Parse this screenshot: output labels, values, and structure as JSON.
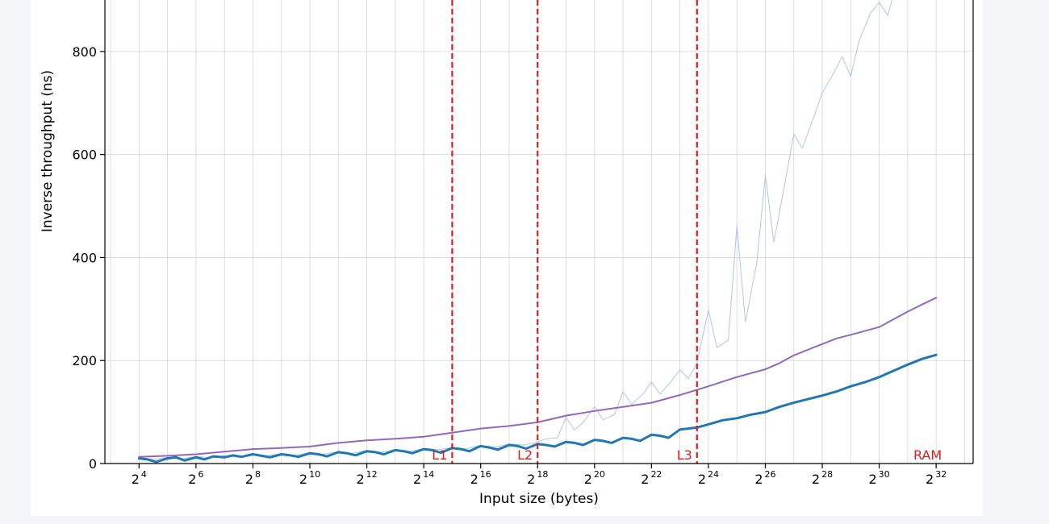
{
  "chart_data": {
    "type": "line",
    "title": "",
    "xlabel": "Input size (bytes)",
    "ylabel": "Inverse throughput (ns)",
    "xscale": "log2",
    "xlim_log2": [
      2.8,
      33.3
    ],
    "ylim": [
      0,
      900
    ],
    "grid": true,
    "x_ticks": [
      {
        "base": "2",
        "exp": "4",
        "log2": 4
      },
      {
        "base": "2",
        "exp": "6",
        "log2": 6
      },
      {
        "base": "2",
        "exp": "8",
        "log2": 8
      },
      {
        "base": "2",
        "exp": "10",
        "log2": 10
      },
      {
        "base": "2",
        "exp": "12",
        "log2": 12
      },
      {
        "base": "2",
        "exp": "14",
        "log2": 14
      },
      {
        "base": "2",
        "exp": "16",
        "log2": 16
      },
      {
        "base": "2",
        "exp": "18",
        "log2": 18
      },
      {
        "base": "2",
        "exp": "20",
        "log2": 20
      },
      {
        "base": "2",
        "exp": "22",
        "log2": 22
      },
      {
        "base": "2",
        "exp": "24",
        "log2": 24
      },
      {
        "base": "2",
        "exp": "26",
        "log2": 26
      },
      {
        "base": "2",
        "exp": "28",
        "log2": 28
      },
      {
        "base": "2",
        "exp": "30",
        "log2": 30
      },
      {
        "base": "2",
        "exp": "32",
        "log2": 32
      }
    ],
    "y_ticks": [
      {
        "label": "0",
        "value": 0
      },
      {
        "label": "200",
        "value": 200
      },
      {
        "label": "400",
        "value": 400
      },
      {
        "label": "600",
        "value": 600
      },
      {
        "label": "800",
        "value": 800
      }
    ],
    "cache_lines": [
      {
        "label": "L1",
        "log2": 15
      },
      {
        "label": "L2",
        "log2": 18
      },
      {
        "label": "L3",
        "log2": 23.6
      }
    ],
    "region_labels": [
      {
        "label": "RAM",
        "log2": 31.7
      }
    ],
    "series": [
      {
        "color": "#9467bd",
        "width": 2,
        "points": [
          [
            4,
            13
          ],
          [
            5,
            15
          ],
          [
            6,
            18
          ],
          [
            7,
            23
          ],
          [
            8,
            28
          ],
          [
            9,
            30
          ],
          [
            10,
            33
          ],
          [
            11,
            40
          ],
          [
            12,
            45
          ],
          [
            13,
            48
          ],
          [
            14,
            52
          ],
          [
            15,
            60
          ],
          [
            16,
            68
          ],
          [
            17,
            73
          ],
          [
            18,
            80
          ],
          [
            19,
            93
          ],
          [
            20,
            102
          ],
          [
            21,
            110
          ],
          [
            22,
            118
          ],
          [
            23,
            133
          ],
          [
            23.6,
            143
          ],
          [
            24,
            150
          ],
          [
            25,
            168
          ],
          [
            26,
            183
          ],
          [
            26.5,
            195
          ],
          [
            27,
            210
          ],
          [
            28,
            232
          ],
          [
            28.5,
            243
          ],
          [
            29,
            250
          ],
          [
            30,
            265
          ],
          [
            30.5,
            280
          ],
          [
            31,
            295
          ],
          [
            32,
            322
          ]
        ]
      },
      {
        "color": "#1f77b4",
        "width": 3,
        "points": [
          [
            4,
            10
          ],
          [
            4.3,
            8
          ],
          [
            4.6,
            3
          ],
          [
            5,
            10
          ],
          [
            5.3,
            12
          ],
          [
            5.6,
            6
          ],
          [
            6,
            12
          ],
          [
            6.3,
            8
          ],
          [
            6.6,
            14
          ],
          [
            7,
            12
          ],
          [
            7.3,
            16
          ],
          [
            7.6,
            13
          ],
          [
            8,
            18
          ],
          [
            8.3,
            15
          ],
          [
            8.6,
            12
          ],
          [
            9,
            18
          ],
          [
            9.3,
            16
          ],
          [
            9.6,
            13
          ],
          [
            10,
            20
          ],
          [
            10.3,
            18
          ],
          [
            10.6,
            14
          ],
          [
            11,
            22
          ],
          [
            11.3,
            20
          ],
          [
            11.6,
            16
          ],
          [
            12,
            24
          ],
          [
            12.3,
            22
          ],
          [
            12.6,
            18
          ],
          [
            13,
            26
          ],
          [
            13.3,
            24
          ],
          [
            13.6,
            20
          ],
          [
            14,
            28
          ],
          [
            14.3,
            26
          ],
          [
            14.6,
            21
          ],
          [
            15,
            30
          ],
          [
            15.3,
            28
          ],
          [
            15.6,
            24
          ],
          [
            16,
            34
          ],
          [
            16.3,
            31
          ],
          [
            16.6,
            27
          ],
          [
            17,
            36
          ],
          [
            17.3,
            34
          ],
          [
            17.6,
            29
          ],
          [
            18,
            38
          ],
          [
            18.3,
            36
          ],
          [
            18.6,
            33
          ],
          [
            19,
            42
          ],
          [
            19.3,
            40
          ],
          [
            19.6,
            36
          ],
          [
            20,
            46
          ],
          [
            20.3,
            44
          ],
          [
            20.6,
            40
          ],
          [
            21,
            50
          ],
          [
            21.3,
            48
          ],
          [
            21.6,
            44
          ],
          [
            22,
            56
          ],
          [
            22.3,
            54
          ],
          [
            22.6,
            50
          ],
          [
            23,
            66
          ],
          [
            23.3,
            68
          ],
          [
            23.6,
            70
          ],
          [
            24,
            76
          ],
          [
            24.5,
            84
          ],
          [
            25,
            88
          ],
          [
            25.5,
            95
          ],
          [
            26,
            100
          ],
          [
            26.5,
            110
          ],
          [
            27,
            118
          ],
          [
            27.5,
            125
          ],
          [
            28,
            132
          ],
          [
            28.5,
            140
          ],
          [
            29,
            150
          ],
          [
            29.5,
            158
          ],
          [
            30,
            168
          ],
          [
            30.5,
            180
          ],
          [
            31,
            192
          ],
          [
            31.5,
            203
          ],
          [
            32,
            211
          ]
        ]
      },
      {
        "color": "#aec7e8",
        "width": 1,
        "points": [
          [
            4,
            12
          ],
          [
            4.5,
            8
          ],
          [
            5,
            12
          ],
          [
            5.5,
            9
          ],
          [
            6,
            14
          ],
          [
            6.5,
            11
          ],
          [
            7,
            15
          ],
          [
            7.5,
            12
          ],
          [
            8,
            18
          ],
          [
            8.5,
            15
          ],
          [
            9,
            19
          ],
          [
            9.5,
            16
          ],
          [
            10,
            21
          ],
          [
            10.5,
            18
          ],
          [
            11,
            23
          ],
          [
            11.5,
            20
          ],
          [
            12,
            25
          ],
          [
            12.5,
            22
          ],
          [
            13,
            27
          ],
          [
            13.5,
            24
          ],
          [
            14,
            29
          ],
          [
            14.5,
            27
          ],
          [
            15,
            31
          ],
          [
            15.5,
            29
          ],
          [
            16,
            35
          ],
          [
            16.5,
            32
          ],
          [
            17,
            38
          ],
          [
            17.5,
            36
          ],
          [
            18,
            42
          ],
          [
            18.3,
            48
          ],
          [
            18.7,
            50
          ],
          [
            19,
            90
          ],
          [
            19.3,
            65
          ],
          [
            19.6,
            80
          ],
          [
            20,
            110
          ],
          [
            20.3,
            85
          ],
          [
            20.7,
            95
          ],
          [
            21,
            140
          ],
          [
            21.3,
            115
          ],
          [
            21.7,
            135
          ],
          [
            22,
            158
          ],
          [
            22.3,
            135
          ],
          [
            22.7,
            160
          ],
          [
            23,
            182
          ],
          [
            23.3,
            165
          ],
          [
            23.6,
            195
          ],
          [
            24,
            298
          ],
          [
            24.3,
            225
          ],
          [
            24.7,
            240
          ],
          [
            25,
            462
          ],
          [
            25.3,
            275
          ],
          [
            25.7,
            390
          ],
          [
            26,
            560
          ],
          [
            26.3,
            430
          ],
          [
            26.7,
            548
          ],
          [
            27,
            640
          ],
          [
            27.3,
            612
          ],
          [
            27.7,
            672
          ],
          [
            28,
            720
          ],
          [
            28.3,
            748
          ],
          [
            28.7,
            790
          ],
          [
            29,
            752
          ],
          [
            29.3,
            822
          ],
          [
            29.7,
            875
          ],
          [
            30,
            895
          ],
          [
            30.3,
            870
          ],
          [
            30.5,
            910
          ]
        ]
      }
    ]
  }
}
